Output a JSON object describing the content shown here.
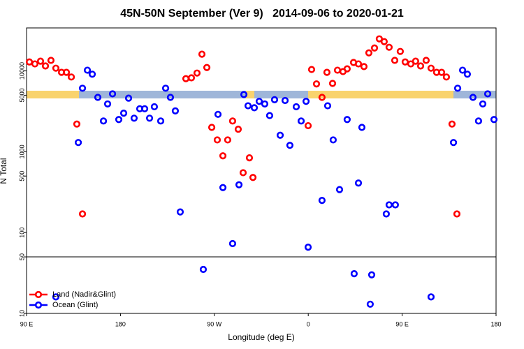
{
  "chart_data": {
    "type": "scatter",
    "title": "45N-50N September (Ver 9)   2014-09-06 to 2020-01-21",
    "xlabel": "Longitude (deg E)",
    "ylabel": "N Total",
    "log_y": true,
    "xlim": [
      90,
      540
    ],
    "ylim": [
      10,
      34000
    ],
    "xticks": [
      {
        "value": 90,
        "label": "90 E"
      },
      180,
      {
        "value": 270,
        "label": "90 W"
      },
      {
        "value": 360,
        "label": "0"
      },
      {
        "value": 450,
        "label": "90 E"
      },
      {
        "value": 540,
        "label": "180"
      }
    ],
    "yticks": [
      10,
      50,
      100,
      500,
      1000,
      5000,
      10000
    ],
    "hline": 50,
    "legend": "bottom-left",
    "series": [
      {
        "name": "Land (Nadir&Glint)",
        "color": "#ff0000",
        "x": [
          92.7,
          98,
          103.4,
          108.1,
          113.4,
          118.1,
          123.5,
          128.2,
          132.9,
          138.2,
          143.6,
          242.7,
          248,
          253.4,
          258.1,
          262.8,
          267.5,
          272.8,
          278.2,
          282.8,
          287.5,
          292.9,
          297.6,
          303.6,
          307,
          359.9,
          363.2,
          367.9,
          373.2,
          377.9,
          383.3,
          388,
          393.3,
          397.3,
          403.4,
          408.1,
          413.4,
          418.1,
          423.5,
          428.1,
          432.8,
          437.5,
          442.9,
          448.2,
          452.9,
          458.3,
          462.9,
          467.7,
          473,
          477.7,
          483,
          487.8,
          492.4,
          497.8,
          502.5
        ],
        "values": [
          12900,
          12200,
          13200,
          11500,
          13500,
          10800,
          9600,
          9600,
          8400,
          2200,
          170,
          8000,
          8200,
          9400,
          16100,
          11000,
          2000,
          1400,
          890,
          1400,
          2400,
          1900,
          550,
          840,
          480,
          2100,
          10400,
          6900,
          4700,
          9600,
          7000,
          10200,
          9800,
          10600,
          12700,
          12200,
          11300,
          16700,
          19200,
          24900,
          23000,
          19600,
          13500,
          17400,
          12900,
          12200,
          13200,
          11500,
          13500,
          10800,
          9600,
          9600,
          8400,
          2200,
          170
        ]
      },
      {
        "name": "Ocean (Glint)",
        "color": "#0000ff",
        "x": [
          118.1,
          139.6,
          143.6,
          148.3,
          153,
          158.3,
          163.7,
          167.7,
          172.4,
          178.4,
          183.1,
          187.8,
          193.1,
          198.5,
          203.2,
          207.9,
          212.5,
          218.6,
          223.3,
          227.9,
          232.6,
          237.3,
          259.4,
          273.5,
          278.2,
          287.5,
          293.6,
          298.3,
          302.3,
          308.3,
          313,
          318.3,
          323,
          327.7,
          333.1,
          337.8,
          342.4,
          348.5,
          353.2,
          357.9,
          359.9,
          373.2,
          378.6,
          383.9,
          390,
          397.3,
          404,
          408.1,
          411.4,
          419.4,
          420.8,
          434.8,
          437.5,
          443.5,
          477.7,
          499.2,
          503.2,
          507.9,
          512.5,
          517.9,
          523.2,
          527.3,
          532,
          538
        ],
        "values": [
          16,
          1300,
          6100,
          10200,
          9100,
          4700,
          2400,
          3900,
          5200,
          2500,
          3000,
          4600,
          2600,
          3400,
          3400,
          2600,
          3600,
          2400,
          6100,
          4700,
          3200,
          180,
          35,
          2900,
          360,
          73,
          390,
          5100,
          3700,
          3500,
          4200,
          3900,
          2800,
          4400,
          1600,
          4300,
          1200,
          3600,
          2400,
          4200,
          66,
          250,
          3700,
          1400,
          340,
          2500,
          31,
          410,
          2000,
          13,
          30,
          170,
          220,
          220,
          16,
          1300,
          6100,
          10200,
          9100,
          4700,
          2400,
          3900,
          5200,
          2500
        ]
      }
    ]
  }
}
